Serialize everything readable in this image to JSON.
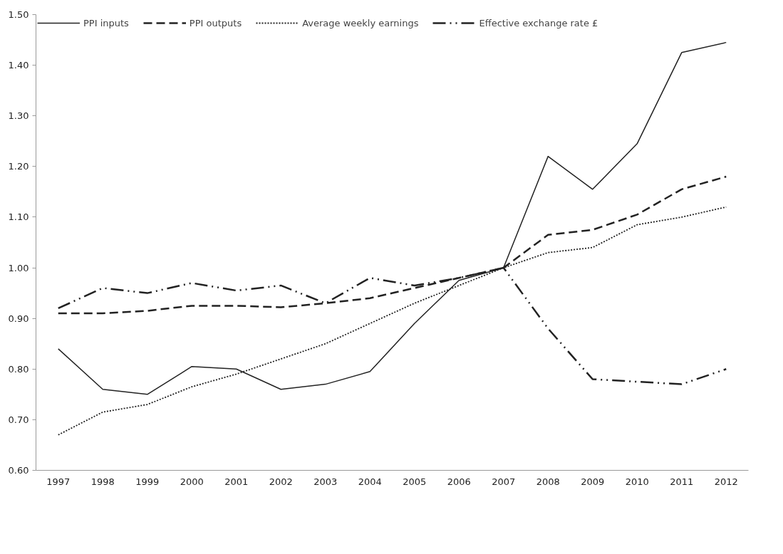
{
  "chart_data": {
    "type": "line",
    "categories": [
      "1997",
      "1998",
      "1999",
      "2000",
      "2001",
      "2002",
      "2003",
      "2004",
      "2005",
      "2006",
      "2007",
      "2008",
      "2009",
      "2010",
      "2011",
      "2012"
    ],
    "ylim": [
      0.6,
      1.5
    ],
    "yticks": [
      {
        "value": 0.6,
        "label": "0.60"
      },
      {
        "value": 0.7,
        "label": "0.70"
      },
      {
        "value": 0.8,
        "label": "0.80"
      },
      {
        "value": 0.9,
        "label": "0.90"
      },
      {
        "value": 1.0,
        "label": "1.00"
      },
      {
        "value": 1.1,
        "label": "1.10"
      },
      {
        "value": 1.2,
        "label": "1.20"
      },
      {
        "value": 1.3,
        "label": "1.30"
      },
      {
        "value": 1.4,
        "label": "1.40"
      },
      {
        "value": 1.5,
        "label": "1.50"
      }
    ],
    "grid": false,
    "legend": "top",
    "marker": "none",
    "series": [
      {
        "name": "PPI inputs",
        "color": "#222222",
        "line_style": "solid",
        "values": [
          0.84,
          0.76,
          0.75,
          0.805,
          0.8,
          0.76,
          0.77,
          0.795,
          0.89,
          0.975,
          1.0,
          1.22,
          1.155,
          1.245,
          1.425,
          1.445
        ]
      },
      {
        "name": "PPI outputs",
        "color": "#222222",
        "line_style": "dashed",
        "values": [
          0.91,
          0.91,
          0.915,
          0.925,
          0.925,
          0.922,
          0.93,
          0.94,
          0.96,
          0.98,
          1.0,
          1.065,
          1.075,
          1.105,
          1.155,
          1.18
        ]
      },
      {
        "name": "Average weekly earnings",
        "color": "#222222",
        "line_style": "dotted",
        "values": [
          0.67,
          0.715,
          0.73,
          0.765,
          0.79,
          0.82,
          0.85,
          0.89,
          0.93,
          0.965,
          1.0,
          1.03,
          1.04,
          1.085,
          1.1,
          1.12
        ]
      },
      {
        "name": "Effective exchange rate £",
        "color": "#222222",
        "line_style": "dashdot",
        "values": [
          0.92,
          0.96,
          0.95,
          0.97,
          0.955,
          0.965,
          0.93,
          0.98,
          0.965,
          0.98,
          1.0,
          0.88,
          0.78,
          0.775,
          0.77,
          0.8
        ]
      }
    ]
  }
}
